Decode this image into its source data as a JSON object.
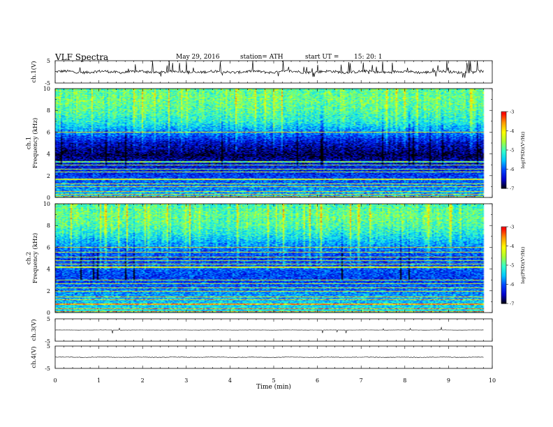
{
  "header": {
    "title": "VLF  Spectra",
    "date": "May 29, 2016",
    "station": "station= ATH",
    "start_label": "start  UT  =",
    "start_time": "15: 20: 1"
  },
  "colors": {
    "spectrogram_scale": [
      "#000000",
      "#0000cc",
      "#0044ff",
      "#00c8ff",
      "#33ffcc",
      "#aaff33",
      "#ffff00",
      "#ff9900",
      "#ff0000",
      "#ffffff"
    ],
    "line_color": "#000000"
  },
  "chart_data": [
    {
      "type": "line",
      "name": "ch1-waveform",
      "ylabel": "ch.1(V)",
      "y_ticks": [
        "5",
        "-5"
      ],
      "ylim": [
        -5,
        5
      ],
      "x_range_min": [
        0,
        10
      ],
      "data_end_min": 9.8,
      "baseline_v": 0.0,
      "noise_amplitude_v": 1.2,
      "spikes": "frequent"
    },
    {
      "type": "heatmap",
      "name": "ch1-spectrogram",
      "ylabel": "ch.1\nFrequency (kHz)",
      "y_ticks": [
        "0",
        "2",
        "4",
        "6",
        "8",
        "10"
      ],
      "ylim_khz": [
        0,
        10
      ],
      "x_range_min": [
        0,
        10
      ],
      "data_end_min": 9.8,
      "colorbar": {
        "label": "log(PSD)(V²/Hz)",
        "ticks": [
          "-3",
          "-4",
          "-5",
          "-6",
          "-7"
        ],
        "range": [
          -7,
          -3
        ]
      },
      "background_logpsd_by_freq_khz": [
        [
          0,
          -5.6
        ],
        [
          1,
          -5.9
        ],
        [
          2,
          -6.2
        ],
        [
          3,
          -6.4
        ],
        [
          4,
          -6.9
        ],
        [
          5,
          -6.6
        ],
        [
          6,
          -6.0
        ],
        [
          7,
          -5.5
        ],
        [
          8,
          -5.3
        ],
        [
          9,
          -5.2
        ],
        [
          10,
          -5.3
        ]
      ],
      "lines_khz": [
        0.1,
        0.3,
        0.6,
        1.0,
        1.3,
        1.7,
        2.4,
        2.6,
        3.0,
        3.3,
        6.0
      ]
    },
    {
      "type": "heatmap",
      "name": "ch2-spectrogram",
      "ylabel": "ch.2\nFrequency (kHz)",
      "y_ticks": [
        "0",
        "2",
        "4",
        "6",
        "8",
        "10"
      ],
      "ylim_khz": [
        0,
        10
      ],
      "x_range_min": [
        0,
        10
      ],
      "data_end_min": 9.8,
      "colorbar": {
        "label": "log(PSD)(V²/Hz)",
        "ticks": [
          "-3",
          "-4",
          "-5",
          "-6",
          "-7"
        ],
        "range": [
          -7,
          -3
        ]
      },
      "background_logpsd_by_freq_khz": [
        [
          0,
          -5.4
        ],
        [
          1,
          -5.6
        ],
        [
          2,
          -5.9
        ],
        [
          3,
          -6.2
        ],
        [
          4,
          -6.1
        ],
        [
          5,
          -6.3
        ],
        [
          6,
          -6.0
        ],
        [
          7,
          -5.6
        ],
        [
          8,
          -5.3
        ],
        [
          9,
          -5.2
        ],
        [
          10,
          -5.4
        ]
      ],
      "lines_khz": [
        0.1,
        0.4,
        0.8,
        1.2,
        1.5,
        2.0,
        2.3,
        2.7,
        3.0,
        4.2,
        4.5,
        4.8,
        5.1,
        5.6,
        6.0
      ]
    },
    {
      "type": "line",
      "name": "ch3-waveform",
      "ylabel": "ch.3(V)",
      "y_ticks": [
        "5",
        "-5"
      ],
      "ylim": [
        -5,
        5
      ],
      "x_range_min": [
        0,
        10
      ],
      "data_end_min": 9.8,
      "baseline_v": 0.0,
      "noise_amplitude_v": 0.1,
      "spikes": "rare"
    },
    {
      "type": "line",
      "name": "ch4-waveform",
      "ylabel": "ch.4(V)",
      "y_ticks": [
        "5",
        "-5"
      ],
      "ylim": [
        -5,
        5
      ],
      "x_range_min": [
        0,
        10
      ],
      "data_end_min": 9.8,
      "baseline_v": 0.0,
      "noise_amplitude_v": 0.25,
      "spikes": "none"
    }
  ],
  "x_axis": {
    "label": "Time  (min)",
    "ticks": [
      "0",
      "1",
      "2",
      "3",
      "4",
      "5",
      "6",
      "7",
      "8",
      "9",
      "10"
    ],
    "xlim": [
      0,
      10
    ]
  }
}
